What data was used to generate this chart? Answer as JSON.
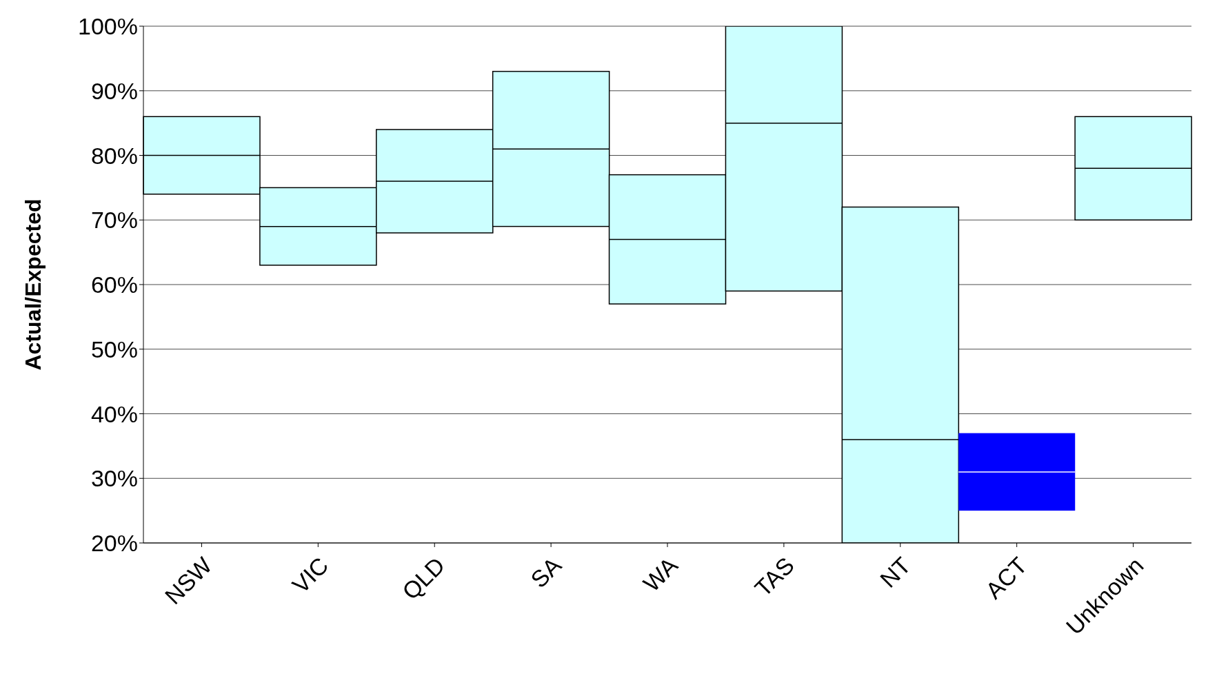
{
  "chart_data": {
    "type": "box",
    "ylabel": "Actual/Expected",
    "categories": [
      "NSW",
      "VIC",
      "QLD",
      "SA",
      "WA",
      "TAS",
      "NT",
      "ACT",
      "Unknown"
    ],
    "boxes": [
      {
        "low": 74,
        "q1": 74,
        "median": 80,
        "q3": 86,
        "high": 86
      },
      {
        "low": 63,
        "q1": 63,
        "median": 69,
        "q3": 75,
        "high": 75
      },
      {
        "low": 68,
        "q1": 68,
        "median": 76,
        "q3": 84,
        "high": 84
      },
      {
        "low": 69,
        "q1": 69,
        "median": 81,
        "q3": 93,
        "high": 93
      },
      {
        "low": 57,
        "q1": 57,
        "median": 67,
        "q3": 77,
        "high": 77
      },
      {
        "low": 59,
        "q1": 59,
        "median": 85,
        "q3": 100,
        "high": 100
      },
      {
        "low": 20,
        "q1": 20,
        "median": 36,
        "q3": 72,
        "high": 72
      },
      {
        "low": 25,
        "q1": 25,
        "median": 31,
        "q3": 37,
        "high": 37
      },
      {
        "low": 70,
        "q1": 70,
        "median": 78,
        "q3": 86,
        "high": 86
      }
    ],
    "colors": [
      "#ccffff",
      "#ccffff",
      "#ccffff",
      "#ccffff",
      "#ccffff",
      "#ccffff",
      "#ccffff",
      "#0000ff",
      "#ccffff"
    ],
    "ylim": [
      20,
      100
    ],
    "yticks": [
      {
        "value": 20,
        "label": "20%"
      },
      {
        "value": 30,
        "label": "30%"
      },
      {
        "value": 40,
        "label": "40%"
      },
      {
        "value": 50,
        "label": "50%"
      },
      {
        "value": 60,
        "label": "60%"
      },
      {
        "value": 70,
        "label": "70%"
      },
      {
        "value": 80,
        "label": "80%"
      },
      {
        "value": 90,
        "label": "90%"
      },
      {
        "value": 100,
        "label": "100%"
      }
    ],
    "grid": "y"
  }
}
